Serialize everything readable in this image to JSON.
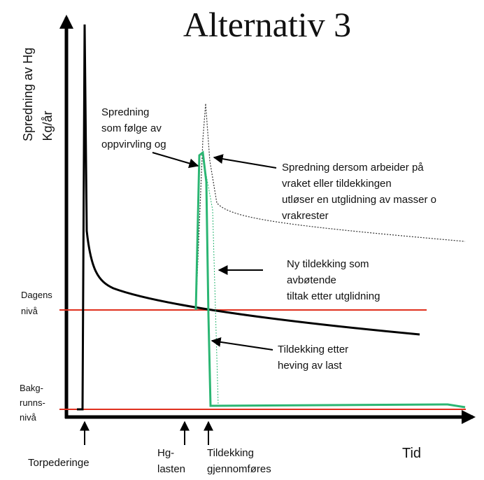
{
  "title": "Alternativ 3",
  "y_axis_label": [
    "Spredning av Hg",
    "Kg/år"
  ],
  "x_axis_label": "Tid",
  "levels": {
    "current": [
      "Dagens",
      "nivå"
    ],
    "background": [
      "Bakg-",
      "runns-",
      "nivå"
    ]
  },
  "annotations": {
    "swirl": [
      "Spredning",
      "som følge av",
      "oppvirvling og"
    ],
    "slide": [
      "Spredning dersom arbeider på",
      "vraket eller tildekkingen",
      "utløser en utglidning av masser o",
      "vrakrester"
    ],
    "new_cover": [
      "Ny tildekking som",
      "avbøtende",
      "tiltak etter utglidning"
    ],
    "cover_after": [
      "Tildekking etter",
      "heving av last"
    ]
  },
  "events": {
    "torpedo": [
      "Torpederinge"
    ],
    "hg_cargo": [
      "Hg-",
      "lasten"
    ],
    "covering": [
      "Tildekking",
      "gjennomføres"
    ]
  }
}
